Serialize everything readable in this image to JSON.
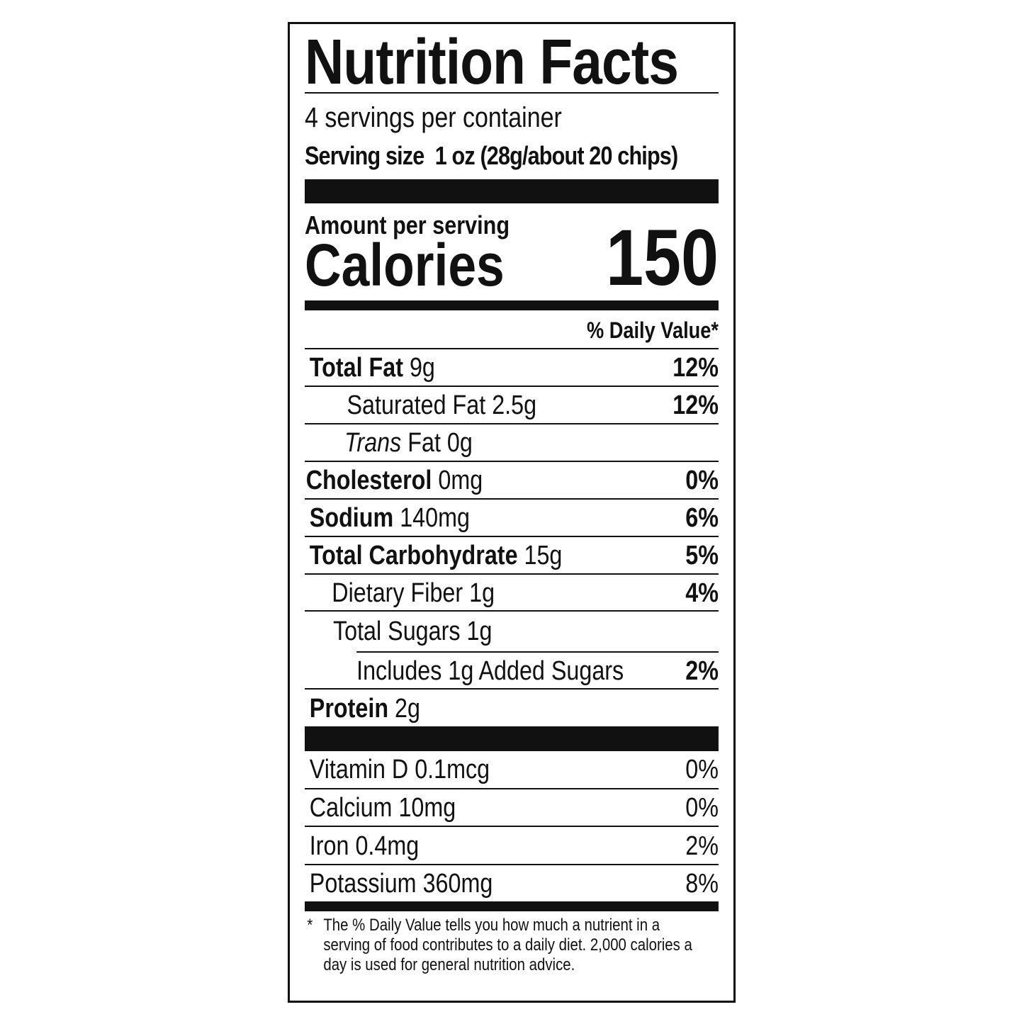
{
  "title": "Nutrition Facts",
  "servings_per_container": "4 servings per container",
  "serving_size_label": "Serving size",
  "serving_size_value": "1 oz (28g/about 20 chips)",
  "amount_per_serving": "Amount per serving",
  "calories_label": "Calories",
  "calories_value": "150",
  "daily_value_header": "% Daily Value*",
  "nutrients": [
    {
      "name": "Total Fat",
      "amount": "9g",
      "dv": "12%"
    },
    {
      "name": "Saturated Fat",
      "amount": "2.5g",
      "dv": "12%"
    },
    {
      "name_italic": "Trans",
      "name": "Fat",
      "amount": "0g",
      "dv": ""
    },
    {
      "name": "Cholesterol",
      "amount": "0mg",
      "dv": "0%"
    },
    {
      "name": "Sodium",
      "amount": "140mg",
      "dv": "6%"
    },
    {
      "name": "Total Carbohydrate",
      "amount": "15g",
      "dv": "5%"
    },
    {
      "name": "Dietary Fiber",
      "amount": "1g",
      "dv": "4%"
    },
    {
      "name": "Total Sugars",
      "amount": "1g",
      "dv": ""
    },
    {
      "name": "Includes 1g Added Sugars",
      "amount": "",
      "dv": "2%"
    },
    {
      "name": "Protein",
      "amount": "2g",
      "dv": ""
    }
  ],
  "vitamins": [
    {
      "name": "Vitamin D",
      "amount": "0.1mcg",
      "dv": "0%"
    },
    {
      "name": "Calcium",
      "amount": "10mg",
      "dv": "0%"
    },
    {
      "name": "Iron",
      "amount": "0.4mg",
      "dv": "2%"
    },
    {
      "name": "Potassium",
      "amount": "360mg",
      "dv": "8%"
    }
  ],
  "footnote_mark": "*",
  "footnote": "The % Daily Value tells you how much a nutrient in a serving of food contributes to a daily diet. 2,000 calories a day is used for general nutrition advice."
}
